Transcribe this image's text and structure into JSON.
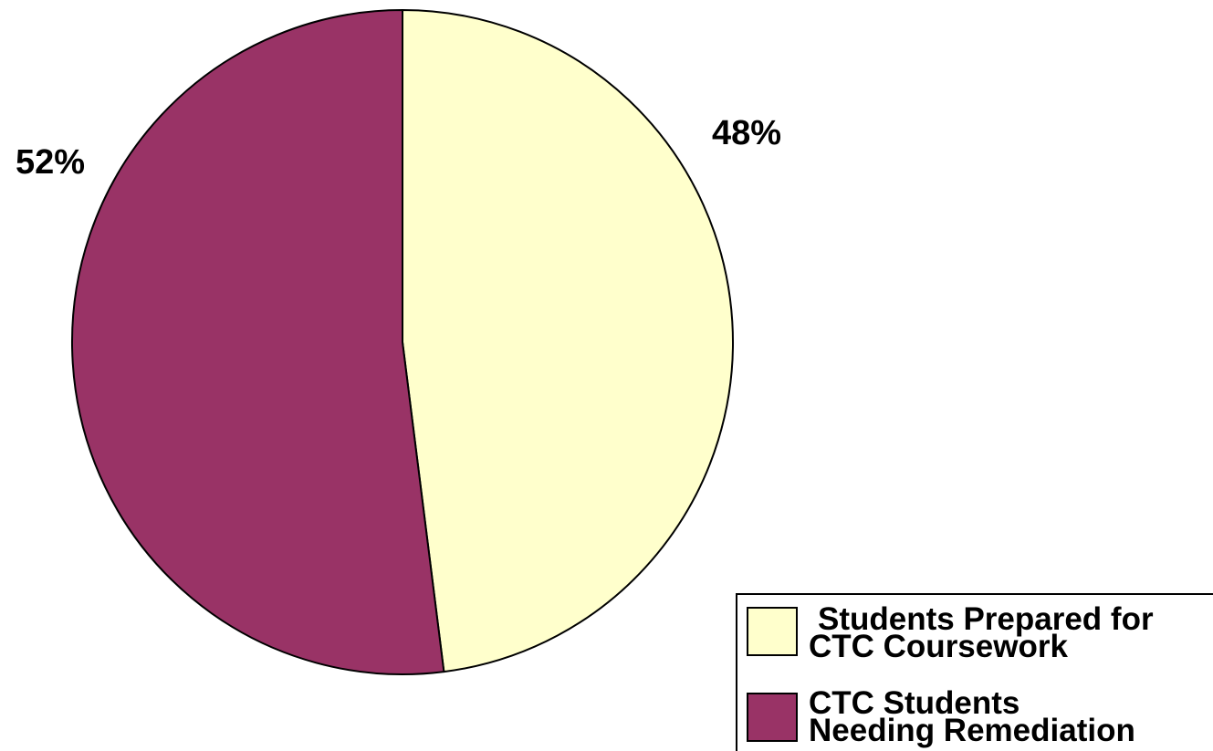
{
  "chart_data": {
    "type": "pie",
    "title": "",
    "slices": [
      {
        "label_lines": [
          "Students Prepared for",
          "CTC Coursework"
        ],
        "value": 48,
        "display": "48%",
        "color": "#ffffcc"
      },
      {
        "label_lines": [
          "CTC Students",
          "Needing Remediation"
        ],
        "value": 52,
        "display": "52%",
        "color": "#993366"
      }
    ],
    "start": "12 o'clock",
    "direction": "clockwise",
    "legend_position": "bottom-right"
  }
}
